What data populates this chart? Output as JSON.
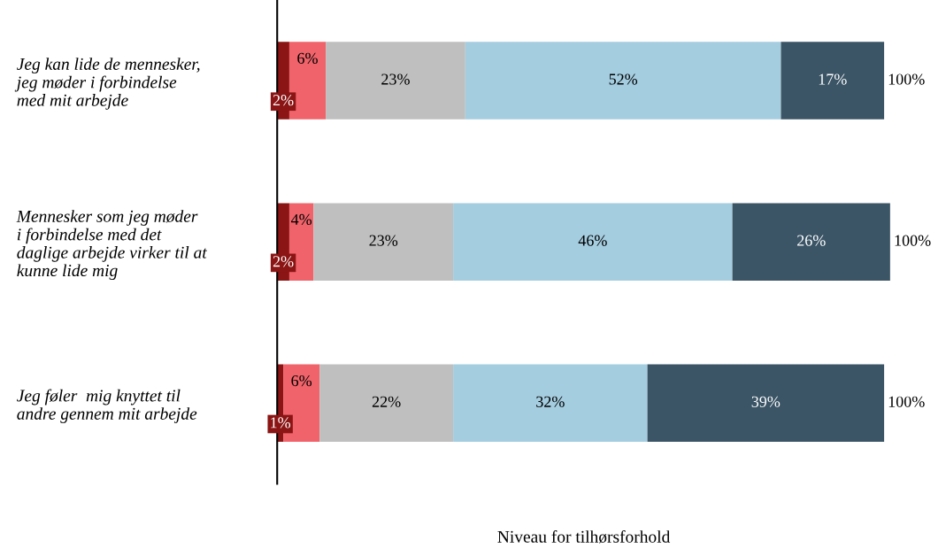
{
  "chart_data": {
    "type": "bar",
    "orientation": "horizontal",
    "stacked": true,
    "data_labels": true,
    "legend": false,
    "grid": false,
    "tick_labels": "y",
    "xlabel": "Niveau for tilhørsforhold",
    "categories": [
      "Jeg kan lide de mennesker,\njeg møder i forbindelse\nmed mit arbejde",
      "Mennesker som jeg møder\ni forbindelse med det\ndaglige arbejde virker til at\nkunne lide mig",
      "Jeg føler  mig knyttet til\nandre gennem mit arbejde"
    ],
    "series": [
      {
        "color": "#8b1414",
        "values": [
          2,
          2,
          1
        ],
        "value_labels": [
          "2%",
          "2%",
          "1%"
        ]
      },
      {
        "color": "#f0636a",
        "values": [
          6,
          4,
          6
        ],
        "value_labels": [
          "6%",
          "4%",
          "6%"
        ]
      },
      {
        "color": "#bfbfbf",
        "values": [
          23,
          23,
          22
        ],
        "value_labels": [
          "23%",
          "23%",
          "22%"
        ]
      },
      {
        "color": "#a4cde0",
        "values": [
          52,
          46,
          32
        ],
        "value_labels": [
          "52%",
          "46%",
          "32%"
        ]
      },
      {
        "color": "#3b5566",
        "values": [
          17,
          26,
          39
        ],
        "value_labels": [
          "17%",
          "26%",
          "39%"
        ]
      }
    ],
    "totals": [
      "100%",
      "100%",
      "100%"
    ]
  }
}
